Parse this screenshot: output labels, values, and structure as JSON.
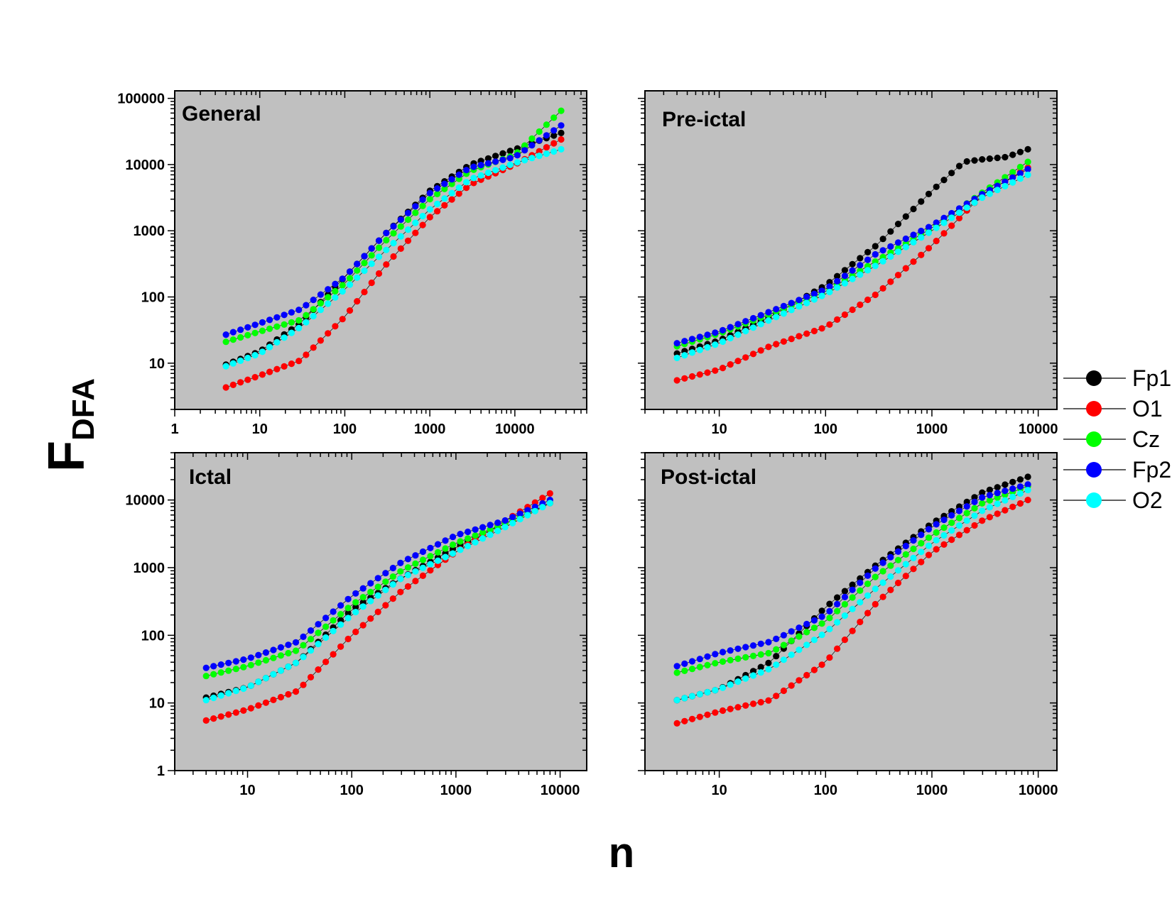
{
  "figure": {
    "ylabel_main": "F",
    "ylabel_sub": "DFA",
    "xlabel": "n"
  },
  "legend": [
    {
      "name": "Fp1",
      "color": "#000000"
    },
    {
      "name": "O1",
      "color": "#ff0000"
    },
    {
      "name": "Cz",
      "color": "#00ff00"
    },
    {
      "name": "Fp2",
      "color": "#0000ff"
    },
    {
      "name": "O2",
      "color": "#00ffff"
    }
  ],
  "chart_data": [
    {
      "type": "scatter",
      "title": "General",
      "xscale": "log",
      "yscale": "log",
      "xlim": [
        1,
        70000
      ],
      "ylim": [
        2,
        130000
      ],
      "xticks": [
        {
          "v": 1,
          "label": "1"
        },
        {
          "v": 10,
          "label": "10"
        },
        {
          "v": 100,
          "label": "100"
        },
        {
          "v": 1000,
          "label": "1000"
        },
        {
          "v": 10000,
          "label": "10000"
        }
      ],
      "yticks": [
        {
          "v": 10,
          "label": "10"
        },
        {
          "v": 100,
          "label": "100"
        },
        {
          "v": 1000,
          "label": "1000"
        },
        {
          "v": 10000,
          "label": "10000"
        },
        {
          "v": 100000,
          "label": "100000"
        }
      ],
      "n_range": [
        4,
        35000
      ],
      "series": [
        {
          "name": "Fp1",
          "color": "#000000",
          "points": [
            [
              4,
              9.5
            ],
            [
              10,
              15
            ],
            [
              30,
              40
            ],
            [
              100,
              200
            ],
            [
              300,
              900
            ],
            [
              1000,
              4000
            ],
            [
              3000,
              10000
            ],
            [
              10000,
              17000
            ],
            [
              35000,
              30000
            ]
          ]
        },
        {
          "name": "O1",
          "color": "#ff0000",
          "points": [
            [
              4,
              4.3
            ],
            [
              10,
              6.5
            ],
            [
              30,
              11
            ],
            [
              100,
              50
            ],
            [
              300,
              300
            ],
            [
              1000,
              1600
            ],
            [
              3000,
              5000
            ],
            [
              10000,
              10000
            ],
            [
              35000,
              24000
            ]
          ]
        },
        {
          "name": "Cz",
          "color": "#00ff00",
          "points": [
            [
              4,
              21
            ],
            [
              10,
              30
            ],
            [
              30,
              45
            ],
            [
              100,
              160
            ],
            [
              300,
              700
            ],
            [
              1000,
              3000
            ],
            [
              3000,
              8000
            ],
            [
              10000,
              14000
            ],
            [
              35000,
              65000
            ]
          ]
        },
        {
          "name": "Fp2",
          "color": "#0000ff",
          "points": [
            [
              4,
              27
            ],
            [
              10,
              40
            ],
            [
              30,
              65
            ],
            [
              100,
              200
            ],
            [
              300,
              900
            ],
            [
              1000,
              3700
            ],
            [
              3000,
              9000
            ],
            [
              10000,
              13000
            ],
            [
              35000,
              39000
            ]
          ]
        },
        {
          "name": "O2",
          "color": "#00ffff",
          "points": [
            [
              4,
              9
            ],
            [
              10,
              14
            ],
            [
              30,
              35
            ],
            [
              100,
              130
            ],
            [
              300,
              500
            ],
            [
              1000,
              2100
            ],
            [
              3000,
              6000
            ],
            [
              10000,
              10500
            ],
            [
              35000,
              17000
            ]
          ]
        }
      ]
    },
    {
      "type": "scatter",
      "title": "Pre-ictal",
      "xscale": "log",
      "yscale": "log",
      "xlim": [
        2,
        15000
      ],
      "ylim": [
        2,
        130000
      ],
      "xticks": [
        {
          "v": 10,
          "label": "10"
        },
        {
          "v": 100,
          "label": "100"
        },
        {
          "v": 1000,
          "label": "1000"
        },
        {
          "v": 10000,
          "label": "10000"
        }
      ],
      "yticks": [],
      "n_range": [
        4,
        8000
      ],
      "series": [
        {
          "name": "Fp1",
          "color": "#000000",
          "points": [
            [
              4,
              14
            ],
            [
              10,
              22
            ],
            [
              30,
              50
            ],
            [
              100,
              150
            ],
            [
              300,
              600
            ],
            [
              1000,
              4000
            ],
            [
              2000,
              11000
            ],
            [
              3000,
              12000
            ],
            [
              5000,
              13000
            ],
            [
              8000,
              17000
            ]
          ]
        },
        {
          "name": "O1",
          "color": "#ff0000",
          "points": [
            [
              4,
              5.5
            ],
            [
              10,
              8
            ],
            [
              30,
              18
            ],
            [
              100,
              35
            ],
            [
              300,
              110
            ],
            [
              1000,
              600
            ],
            [
              3000,
              3500
            ],
            [
              8000,
              9000
            ]
          ]
        },
        {
          "name": "Cz",
          "color": "#00ff00",
          "points": [
            [
              4,
              18
            ],
            [
              10,
              28
            ],
            [
              30,
              55
            ],
            [
              100,
              120
            ],
            [
              300,
              350
            ],
            [
              1000,
              1100
            ],
            [
              3000,
              3800
            ],
            [
              8000,
              11000
            ]
          ]
        },
        {
          "name": "Fp2",
          "color": "#0000ff",
          "points": [
            [
              4,
              20
            ],
            [
              10,
              30
            ],
            [
              30,
              60
            ],
            [
              100,
              130
            ],
            [
              300,
              450
            ],
            [
              1000,
              1200
            ],
            [
              3000,
              3600
            ],
            [
              8000,
              8500
            ]
          ]
        },
        {
          "name": "O2",
          "color": "#00ffff",
          "points": [
            [
              4,
              12
            ],
            [
              10,
              20
            ],
            [
              30,
              45
            ],
            [
              100,
              110
            ],
            [
              300,
              300
            ],
            [
              1000,
              1000
            ],
            [
              3000,
              3200
            ],
            [
              8000,
              7000
            ]
          ]
        }
      ]
    },
    {
      "type": "scatter",
      "title": "Ictal",
      "xscale": "log",
      "yscale": "log",
      "xlim": [
        2,
        18000
      ],
      "ylim": [
        1,
        50000
      ],
      "xticks": [
        {
          "v": 10,
          "label": "10"
        },
        {
          "v": 100,
          "label": "100"
        },
        {
          "v": 1000,
          "label": "1000"
        },
        {
          "v": 10000,
          "label": "10000"
        }
      ],
      "yticks": [
        {
          "v": 1,
          "label": "1"
        },
        {
          "v": 10,
          "label": "10"
        },
        {
          "v": 100,
          "label": "100"
        },
        {
          "v": 1000,
          "label": "1000"
        },
        {
          "v": 10000,
          "label": "10000"
        }
      ],
      "n_range": [
        4,
        8000
      ],
      "series": [
        {
          "name": "Fp1",
          "color": "#000000",
          "points": [
            [
              4,
              12
            ],
            [
              10,
              17
            ],
            [
              30,
              40
            ],
            [
              100,
              240
            ],
            [
              300,
              700
            ],
            [
              1000,
              2000
            ],
            [
              3000,
              4500
            ],
            [
              8000,
              9000
            ]
          ]
        },
        {
          "name": "O1",
          "color": "#ff0000",
          "points": [
            [
              4,
              5.5
            ],
            [
              10,
              8
            ],
            [
              30,
              15
            ],
            [
              100,
              100
            ],
            [
              300,
              450
            ],
            [
              1000,
              1700
            ],
            [
              3000,
              5000
            ],
            [
              8000,
              12500
            ]
          ]
        },
        {
          "name": "Cz",
          "color": "#00ff00",
          "points": [
            [
              4,
              25
            ],
            [
              10,
              35
            ],
            [
              30,
              60
            ],
            [
              100,
              280
            ],
            [
              300,
              900
            ],
            [
              1000,
              2300
            ],
            [
              3000,
              4500
            ],
            [
              8000,
              9000
            ]
          ]
        },
        {
          "name": "Fp2",
          "color": "#0000ff",
          "points": [
            [
              4,
              33
            ],
            [
              10,
              45
            ],
            [
              30,
              80
            ],
            [
              100,
              380
            ],
            [
              300,
              1200
            ],
            [
              1000,
              3000
            ],
            [
              3000,
              5000
            ],
            [
              8000,
              10000
            ]
          ]
        },
        {
          "name": "O2",
          "color": "#00ffff",
          "points": [
            [
              4,
              11
            ],
            [
              10,
              17
            ],
            [
              30,
              40
            ],
            [
              100,
              200
            ],
            [
              300,
              700
            ],
            [
              1000,
              1700
            ],
            [
              3000,
              4000
            ],
            [
              8000,
              9000
            ]
          ]
        }
      ]
    },
    {
      "type": "scatter",
      "title": "Post-ictal",
      "xscale": "log",
      "yscale": "log",
      "xlim": [
        2,
        15000
      ],
      "ylim": [
        1,
        50000
      ],
      "xticks": [
        {
          "v": 10,
          "label": "10"
        },
        {
          "v": 100,
          "label": "100"
        },
        {
          "v": 1000,
          "label": "1000"
        },
        {
          "v": 10000,
          "label": "10000"
        }
      ],
      "yticks": [],
      "n_range": [
        4,
        8000
      ],
      "series": [
        {
          "name": "Fp1",
          "color": "#000000",
          "points": [
            [
              4,
              11
            ],
            [
              10,
              16
            ],
            [
              30,
              40
            ],
            [
              100,
              260
            ],
            [
              300,
              1100
            ],
            [
              1000,
              4500
            ],
            [
              3000,
              13000
            ],
            [
              8000,
              22000
            ]
          ]
        },
        {
          "name": "O1",
          "color": "#ff0000",
          "points": [
            [
              4,
              5
            ],
            [
              10,
              7.5
            ],
            [
              30,
              11
            ],
            [
              100,
              40
            ],
            [
              300,
              300
            ],
            [
              1000,
              1700
            ],
            [
              3000,
              5000
            ],
            [
              8000,
              10000
            ]
          ]
        },
        {
          "name": "Cz",
          "color": "#00ff00",
          "points": [
            [
              4,
              28
            ],
            [
              10,
              40
            ],
            [
              30,
              55
            ],
            [
              100,
              160
            ],
            [
              300,
              750
            ],
            [
              1000,
              3000
            ],
            [
              3000,
              9000
            ],
            [
              8000,
              16000
            ]
          ]
        },
        {
          "name": "Fp2",
          "color": "#0000ff",
          "points": [
            [
              4,
              35
            ],
            [
              10,
              55
            ],
            [
              30,
              80
            ],
            [
              100,
              200
            ],
            [
              300,
              1000
            ],
            [
              1000,
              4000
            ],
            [
              3000,
              11000
            ],
            [
              8000,
              17000
            ]
          ]
        },
        {
          "name": "O2",
          "color": "#00ffff",
          "points": [
            [
              4,
              11
            ],
            [
              10,
              16
            ],
            [
              30,
              32
            ],
            [
              100,
              110
            ],
            [
              300,
              500
            ],
            [
              1000,
              2300
            ],
            [
              3000,
              7000
            ],
            [
              8000,
              14000
            ]
          ]
        }
      ]
    }
  ]
}
